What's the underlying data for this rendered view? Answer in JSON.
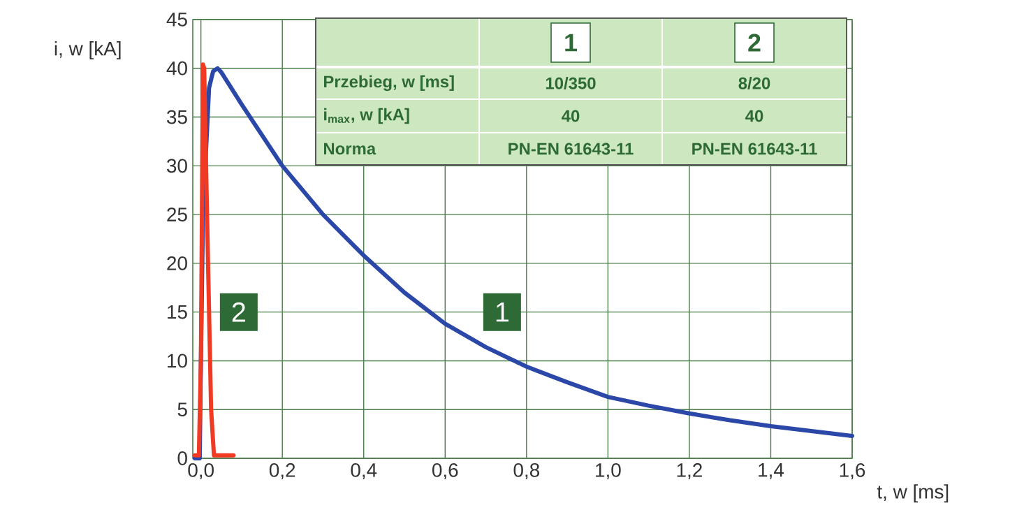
{
  "chart_data": [
    {
      "type": "line",
      "xlabel": "t, w [ms]",
      "ylabel": "i, w [kA]",
      "xlim": [
        -0.02,
        1.6
      ],
      "ylim": [
        0,
        45
      ],
      "xticks": [
        {
          "value": 0,
          "label": "0,0"
        },
        {
          "value": 0.2,
          "label": "0,2"
        },
        {
          "value": 0.4,
          "label": "0,4"
        },
        {
          "value": 0.6,
          "label": "0,6"
        },
        {
          "value": 0.8,
          "label": "0,8"
        },
        {
          "value": 1.0,
          "label": "1,0"
        },
        {
          "value": 1.2,
          "label": "1,2"
        },
        {
          "value": 1.4,
          "label": "1,4"
        },
        {
          "value": 1.6,
          "label": "1,6"
        }
      ],
      "yticks": [
        0,
        5,
        10,
        15,
        20,
        25,
        30,
        35,
        40,
        45
      ],
      "grid": true,
      "series": [
        {
          "color": "#2b48a8",
          "x": [
            -0.015,
            -0.003,
            0.0,
            0.005,
            0.02,
            0.03,
            0.041,
            0.05,
            0.1,
            0.2,
            0.3,
            0.4,
            0.5,
            0.6,
            0.7,
            0.8,
            0.9,
            1.0,
            1.1,
            1.2,
            1.3,
            1.4,
            1.5,
            1.6
          ],
          "values": [
            0,
            0,
            10,
            25,
            38,
            39.7,
            40,
            39.6,
            36.3,
            30,
            25,
            20.8,
            17,
            13.8,
            11.4,
            9.4,
            7.8,
            6.3,
            5.4,
            4.6,
            3.9,
            3.3,
            2.8,
            2.3
          ]
        },
        {
          "color": "#f03a24",
          "x": [
            -0.015,
            -0.005,
            0.0,
            0.005,
            0.008,
            0.015,
            0.025,
            0.032,
            0.08
          ],
          "values": [
            0.3,
            0.3,
            10,
            40.4,
            40,
            25,
            5,
            0.3,
            0.3
          ]
        }
      ],
      "annotations": [
        {
          "text": "1",
          "x": 0.74,
          "y": 15
        },
        {
          "text": "2",
          "x": 0.093,
          "y": 15
        }
      ]
    },
    {
      "type": "other",
      "categories": [
        "1",
        "2"
      ],
      "y_categories": [
        "Przebieg, w [ms]",
        "i$_{max}$, w [kA]",
        "Norma"
      ],
      "cell_labels": [
        [
          "10/350",
          "8/20"
        ],
        [
          "40",
          "40"
        ],
        [
          "PN-EN 61643-11",
          "PN-EN 61643-11"
        ]
      ]
    }
  ]
}
